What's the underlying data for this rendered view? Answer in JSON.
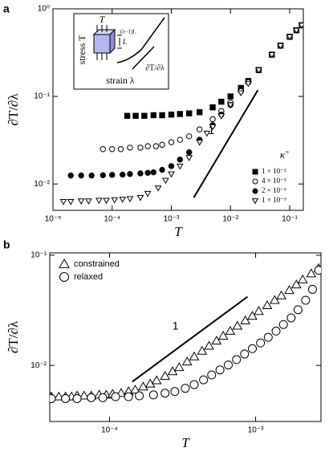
{
  "chart_data": [
    {
      "type": "scatter",
      "panel_label": "a",
      "xlabel": "T",
      "ylabel": "∂T/∂λ",
      "log_x": true,
      "log_y": true,
      "xlim": [
        1e-05,
        0.17
      ],
      "ylim": [
        0.005,
        1
      ],
      "xticks": [
        {
          "value": 1e-05,
          "label": "10⁻⁵"
        },
        {
          "value": 0.0001,
          "label": "10⁻⁴"
        },
        {
          "value": 0.001,
          "label": "10⁻³"
        },
        {
          "value": 0.01,
          "label": "10⁻²"
        },
        {
          "value": 0.1,
          "label": "10⁻¹"
        }
      ],
      "yticks": [
        {
          "value": 0.01,
          "label": "10⁻²"
        },
        {
          "value": 0.1,
          "label": "10⁻¹"
        },
        {
          "value": 1,
          "label": "10⁰"
        }
      ],
      "legend_title": "κ̃",
      "legend": "lower right",
      "series": [
        {
          "name": "1 × 10⁻²",
          "marker": "square-filled",
          "color": "#000000",
          "x": [
            0.00018,
            0.00025,
            0.00035,
            0.0005,
            0.0007,
            0.001,
            0.0014,
            0.002,
            0.003,
            0.005,
            0.007,
            0.01,
            0.015,
            0.02,
            0.03,
            0.05,
            0.07,
            0.1,
            0.13,
            0.16
          ],
          "values": [
            0.06,
            0.06,
            0.06,
            0.061,
            0.061,
            0.062,
            0.063,
            0.064,
            0.066,
            0.075,
            0.087,
            0.1,
            0.125,
            0.15,
            0.2,
            0.3,
            0.38,
            0.48,
            0.57,
            0.65
          ]
        },
        {
          "name": "4 × 10⁻³",
          "marker": "circle-open",
          "color": "#000000",
          "x": [
            7e-05,
            0.0001,
            0.00014,
            0.0002,
            0.0003,
            0.0004,
            0.00055,
            0.0007,
            0.001,
            0.0014,
            0.002,
            0.003,
            0.005,
            0.007,
            0.01,
            0.015,
            0.02,
            0.03,
            0.05,
            0.07,
            0.1,
            0.13,
            0.16
          ],
          "values": [
            0.025,
            0.025,
            0.025,
            0.026,
            0.026,
            0.027,
            0.027,
            0.028,
            0.03,
            0.032,
            0.035,
            0.042,
            0.055,
            0.068,
            0.085,
            0.115,
            0.145,
            0.2,
            0.3,
            0.38,
            0.48,
            0.57,
            0.65
          ]
        },
        {
          "name": "2 × 10⁻³",
          "marker": "circle-filled",
          "color": "#000000",
          "x": [
            2e-05,
            3e-05,
            4.5e-05,
            7e-05,
            0.0001,
            0.00015,
            0.0002,
            0.0003,
            0.0004,
            0.0005,
            0.0007,
            0.001,
            0.0014,
            0.002,
            0.003,
            0.005,
            0.007,
            0.01
          ],
          "values": [
            0.0125,
            0.0125,
            0.0125,
            0.0126,
            0.0127,
            0.0128,
            0.013,
            0.0132,
            0.0134,
            0.0136,
            0.0145,
            0.016,
            0.019,
            0.023,
            0.032,
            0.047,
            0.062,
            0.08
          ]
        },
        {
          "name": "1 × 10⁻³",
          "marker": "triangle-down-open",
          "color": "#000000",
          "x": [
            1.5e-05,
            2e-05,
            3e-05,
            4e-05,
            6e-05,
            8e-05,
            0.00011,
            0.00015,
            0.0002,
            0.0003,
            0.0004,
            0.0006,
            0.0008,
            0.001,
            0.0014,
            0.002,
            0.003,
            0.004,
            0.005,
            0.007,
            0.01,
            0.015,
            0.02,
            0.03,
            0.05,
            0.07,
            0.1,
            0.13,
            0.16
          ],
          "values": [
            0.0063,
            0.0063,
            0.0064,
            0.0064,
            0.0065,
            0.0065,
            0.0066,
            0.0067,
            0.0068,
            0.007,
            0.0078,
            0.009,
            0.011,
            0.013,
            0.016,
            0.02,
            0.03,
            0.038,
            0.045,
            0.06,
            0.08,
            0.11,
            0.14,
            0.2,
            0.3,
            0.38,
            0.48,
            0.57,
            0.65
          ]
        }
      ],
      "reference_line": {
        "label": "1",
        "x": [
          0.0024,
          0.029
        ],
        "y": [
          0.007,
          0.118
        ]
      },
      "inset": {
        "ylabel": "stress T",
        "xlabel": "strain λ",
        "force": "T",
        "extension": "(λ−1)L",
        "length": "L",
        "slope": "∂T/∂λ"
      }
    },
    {
      "type": "scatter",
      "panel_label": "b",
      "xlabel": "T",
      "ylabel": "∂T/∂λ",
      "log_x": true,
      "log_y": true,
      "xlim": [
        3.9e-05,
        0.0028
      ],
      "ylim": [
        0.0031,
        0.105
      ],
      "xticks": [
        {
          "value": 0.0001,
          "label": "10⁻⁴"
        },
        {
          "value": 0.001,
          "label": "10⁻³"
        }
      ],
      "yticks": [
        {
          "value": 0.01,
          "label": "10⁻²"
        },
        {
          "value": 0.1,
          "label": "10⁻¹"
        }
      ],
      "legend": "upper left",
      "series": [
        {
          "name": "constrained",
          "marker": "triangle-up-open",
          "color": "#000000",
          "x": [
            4e-05,
            4.5e-05,
            5e-05,
            5.5e-05,
            6e-05,
            6.7e-05,
            7.5e-05,
            8.5e-05,
            9.5e-05,
            0.000105,
            0.00012,
            0.000135,
            0.00015,
            0.00017,
            0.00019,
            0.00021,
            0.00024,
            0.00027,
            0.0003,
            0.00034,
            0.00038,
            0.00043,
            0.00048,
            0.00054,
            0.0006,
            0.00067,
            0.00075,
            0.00085,
            0.00095,
            0.00105,
            0.0012,
            0.00135,
            0.0015,
            0.0017,
            0.0019,
            0.0021,
            0.0024,
            0.0027
          ],
          "values": [
            0.0052,
            0.0052,
            0.0052,
            0.0052,
            0.0053,
            0.0053,
            0.0053,
            0.0054,
            0.0054,
            0.0055,
            0.0056,
            0.0058,
            0.006,
            0.0064,
            0.0068,
            0.0073,
            0.008,
            0.0088,
            0.0096,
            0.0108,
            0.012,
            0.0135,
            0.015,
            0.0167,
            0.0185,
            0.0205,
            0.0228,
            0.0255,
            0.028,
            0.031,
            0.035,
            0.039,
            0.043,
            0.048,
            0.054,
            0.06,
            0.068,
            0.076
          ]
        },
        {
          "name": "relaxed",
          "marker": "circle-open",
          "color": "#000000",
          "x": [
            4e-05,
            5e-05,
            6e-05,
            7.5e-05,
            9e-05,
            0.00011,
            0.000135,
            0.00016,
            0.0002,
            0.00024,
            0.00028,
            0.00033,
            0.00038,
            0.00044,
            0.0005,
            0.00057,
            0.00065,
            0.00074,
            0.00084,
            0.00095,
            0.00108,
            0.00122,
            0.00138,
            0.00155,
            0.00175,
            0.00195,
            0.0022,
            0.00245,
            0.0027
          ],
          "values": [
            0.005,
            0.005,
            0.005,
            0.0051,
            0.0051,
            0.0052,
            0.0052,
            0.0053,
            0.0054,
            0.0056,
            0.0058,
            0.0062,
            0.0067,
            0.0074,
            0.0082,
            0.0091,
            0.0101,
            0.0113,
            0.0127,
            0.0142,
            0.016,
            0.018,
            0.0205,
            0.0235,
            0.027,
            0.032,
            0.039,
            0.049,
            0.073
          ]
        }
      ],
      "reference_line": {
        "label": "1",
        "x": [
          0.000143,
          0.00088
        ],
        "y": [
          0.0071,
          0.042
        ]
      }
    }
  ]
}
